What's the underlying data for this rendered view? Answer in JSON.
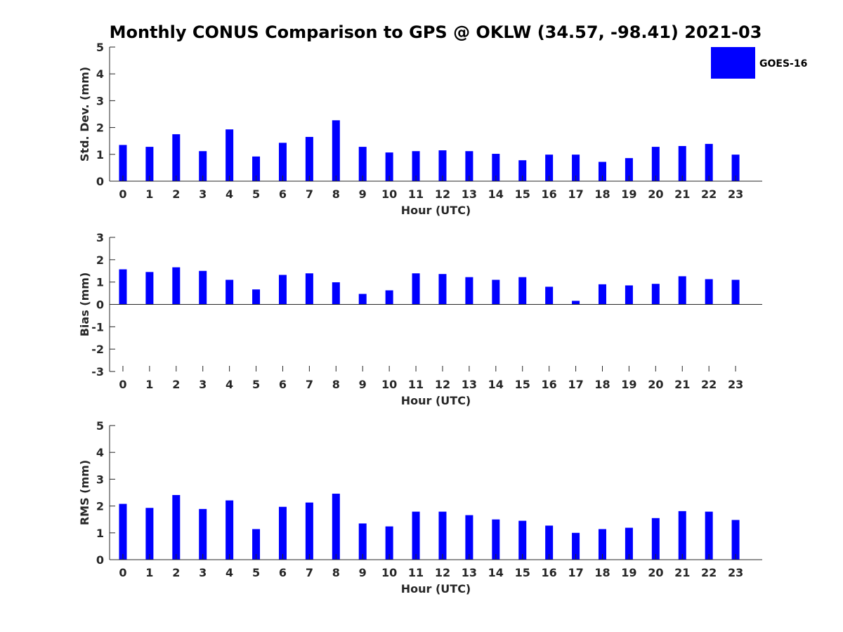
{
  "chart_data": {
    "title": "Monthly CONUS Comparison to GPS @ OKLW (34.57, -98.41) 2021-03",
    "legend": {
      "label": "GOES-16",
      "color": "#0000ff",
      "placement": "top-right"
    },
    "hours": [
      "0",
      "1",
      "2",
      "3",
      "4",
      "5",
      "6",
      "7",
      "8",
      "9",
      "10",
      "11",
      "12",
      "13",
      "14",
      "15",
      "16",
      "17",
      "18",
      "19",
      "20",
      "21",
      "22",
      "23"
    ],
    "panels": [
      {
        "type": "bar",
        "xlabel": "Hour (UTC)",
        "ylabel": "Std. Dev. (mm)",
        "ylim": [
          0,
          5
        ],
        "yticks": [
          "0",
          "1",
          "2",
          "3",
          "4",
          "5"
        ],
        "series": [
          {
            "name": "GOES-16",
            "values": [
              1.35,
              1.28,
              1.75,
              1.12,
              1.93,
              0.92,
              1.43,
              1.65,
              2.27,
              1.28,
              1.07,
              1.12,
              1.15,
              1.12,
              1.02,
              0.78,
              0.99,
              0.99,
              0.72,
              0.86,
              1.28,
              1.31,
              1.39,
              0.99
            ]
          }
        ]
      },
      {
        "type": "bar",
        "xlabel": "Hour (UTC)",
        "ylabel": "Bias (mm)",
        "ylim": [
          -3,
          3
        ],
        "yticks": [
          "-3",
          "-2",
          "-1",
          "0",
          "1",
          "2",
          "3"
        ],
        "series": [
          {
            "name": "GOES-16",
            "values": [
              1.57,
              1.45,
              1.66,
              1.5,
              1.1,
              0.67,
              1.32,
              1.39,
              0.99,
              0.47,
              0.63,
              1.39,
              1.36,
              1.22,
              1.1,
              1.22,
              0.79,
              0.16,
              0.9,
              0.85,
              0.92,
              1.26,
              1.13,
              1.1
            ]
          }
        ]
      },
      {
        "type": "bar",
        "xlabel": "Hour (UTC)",
        "ylabel": "RMS (mm)",
        "ylim": [
          0,
          5
        ],
        "yticks": [
          "0",
          "1",
          "2",
          "3",
          "4",
          "5"
        ],
        "series": [
          {
            "name": "GOES-16",
            "values": [
              2.08,
              1.93,
              2.41,
              1.89,
              2.21,
              1.14,
              1.97,
              2.13,
              2.46,
              1.35,
              1.24,
              1.79,
              1.79,
              1.66,
              1.5,
              1.45,
              1.27,
              1.0,
              1.14,
              1.19,
              1.55,
              1.81,
              1.79,
              1.48
            ]
          }
        ]
      }
    ]
  }
}
